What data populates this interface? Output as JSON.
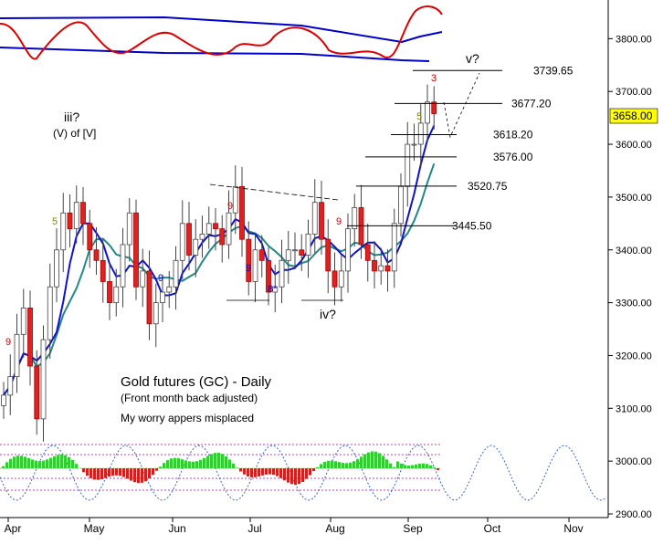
{
  "chart_data": {
    "type": "candlestick",
    "title": "Gold futures (GC) - Daily",
    "subtitle": "(Front month back adjusted)",
    "note": "My worry appers misplaced",
    "ylim": [
      2900,
      3900
    ],
    "y_ticks": [
      "2900.00",
      "3000.00",
      "3100.00",
      "3200.00",
      "3300.00",
      "3400.00",
      "3500.00",
      "3600.00",
      "3700.00",
      "3800.00"
    ],
    "x_labels": [
      "Apr",
      "May",
      "Jun",
      "Jul",
      "Aug",
      "Sep",
      "Oct",
      "Nov"
    ],
    "last_price": "3658.00",
    "levels": [
      {
        "label": "3739.65",
        "value": 3739.65
      },
      {
        "label": "3677.20",
        "value": 3677.2
      },
      {
        "label": "3618.20",
        "value": 3618.2
      },
      {
        "label": "3576.00",
        "value": 3576.0
      },
      {
        "label": "3520.75",
        "value": 3520.75
      },
      {
        "label": "3445.50",
        "value": 3445.5
      }
    ],
    "wave_labels": {
      "iii": "iii?",
      "iii_sub": "(V) of [V]",
      "iv": "iv?",
      "v": "v?"
    },
    "count_marks": [
      "9",
      "5",
      "9",
      "9",
      "9",
      "8*",
      "9",
      "5",
      "3"
    ],
    "series": [
      {
        "values": [
          3125,
          3160,
          3240,
          3290,
          3180,
          3080,
          3230,
          3330,
          3400,
          3470,
          3440,
          3490,
          3450,
          3400,
          3380,
          3340,
          3300,
          3330,
          3410,
          3470,
          3330,
          3360,
          3260,
          3300,
          3320,
          3330,
          3380,
          3450,
          3390,
          3420,
          3430,
          3450,
          3440,
          3410,
          3470,
          3520,
          3420,
          3340,
          3400,
          3380,
          3320,
          3330,
          3380,
          3400,
          3400,
          3390,
          3430,
          3490,
          3420,
          3360,
          3330,
          3360,
          3440,
          3480,
          3410,
          3380,
          3360,
          3370,
          3360,
          3450,
          3520,
          3600,
          3600,
          3640,
          3680,
          3658
        ]
      }
    ],
    "grid": false,
    "legend": "none"
  }
}
